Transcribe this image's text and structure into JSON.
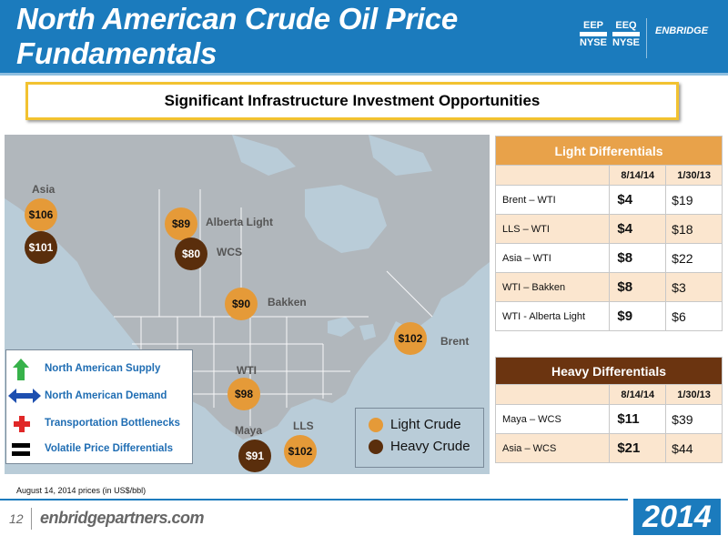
{
  "header": {
    "title_line1": "North American Crude Oil Price",
    "title_line2": "Fundamentals",
    "logo_eep": {
      "code": "EEP",
      "exchange": "NYSE"
    },
    "logo_eeq": {
      "code": "EEQ",
      "exchange": "NYSE"
    },
    "brand": "ENBRIDGE"
  },
  "subtitle": "Significant Infrastructure Investment Opportunities",
  "map": {
    "prices": [
      {
        "id": "asia-light",
        "value": "$106",
        "type": "light"
      },
      {
        "id": "asia-heavy",
        "value": "$101",
        "type": "heavy"
      },
      {
        "id": "alberta-light",
        "value": "$89",
        "type": "light"
      },
      {
        "id": "wcs",
        "value": "$80",
        "type": "heavy"
      },
      {
        "id": "bakken",
        "value": "$90",
        "type": "light"
      },
      {
        "id": "brent",
        "value": "$102",
        "type": "light"
      },
      {
        "id": "wti",
        "value": "$98",
        "type": "light"
      },
      {
        "id": "maya",
        "value": "$91",
        "type": "heavy"
      },
      {
        "id": "lls",
        "value": "$102",
        "type": "light"
      }
    ],
    "labels": {
      "asia": "Asia",
      "alberta_light": "Alberta Light",
      "wcs": "WCS",
      "bakken": "Bakken",
      "brent": "Brent",
      "wti": "WTI",
      "maya": "Maya",
      "lls": "LLS"
    },
    "legend_left": [
      {
        "icon": "green-up-arrow-icon",
        "label": "North American Supply"
      },
      {
        "icon": "blue-double-arrow-icon",
        "label": "North American Demand"
      },
      {
        "icon": "red-cross-icon",
        "label": "Transportation Bottlenecks"
      },
      {
        "icon": "equals-icon",
        "label": "Volatile Price Differentials"
      }
    ],
    "legend_right": [
      {
        "label": "Light Crude",
        "color": "#e59a38"
      },
      {
        "label": "Heavy Crude",
        "color": "#5a2e0c"
      }
    ]
  },
  "light_differentials": {
    "title": "Light Differentials",
    "color": "#e8a24a",
    "dates": [
      "8/14/14",
      "1/30/13"
    ],
    "rows": [
      {
        "name": "Brent – WTI",
        "v1": "$4",
        "v2": "$19"
      },
      {
        "name": "LLS – WTI",
        "v1": "$4",
        "v2": "$18"
      },
      {
        "name": "Asia – WTI",
        "v1": "$8",
        "v2": "$22"
      },
      {
        "name": "WTI – Bakken",
        "v1": "$8",
        "v2": "$3"
      },
      {
        "name": "WTI - Alberta Light",
        "v1": "$9",
        "v2": "$6"
      }
    ]
  },
  "heavy_differentials": {
    "title": "Heavy Differentials",
    "color": "#6b3410",
    "dates": [
      "8/14/14",
      "1/30/13"
    ],
    "rows": [
      {
        "name": "Maya – WCS",
        "v1": "$11",
        "v2": "$39"
      },
      {
        "name": "Asia – WCS",
        "v1": "$21",
        "v2": "$44"
      }
    ]
  },
  "footer": {
    "footnote": "August 14, 2014 prices (in US$/bbl)",
    "page_number": "12",
    "site": "enbridgepartners.com",
    "year": "2014"
  }
}
